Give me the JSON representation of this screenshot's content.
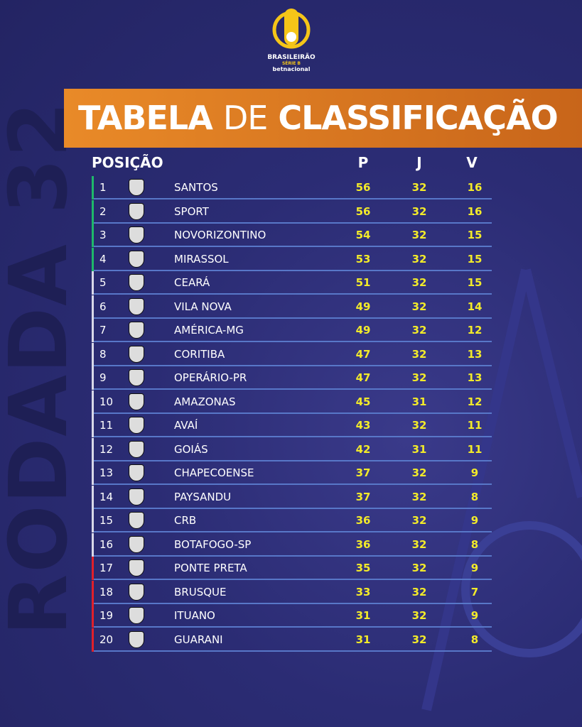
{
  "logo": {
    "name": "BRASILEIRÃO",
    "division": "SÉRIE B",
    "sponsor": "betnacional"
  },
  "title": {
    "part1": "TABELA",
    "part2": "DE",
    "part3": "CLASSIFICAÇÃO"
  },
  "round": "RODADA 32",
  "table": {
    "header": [
      "POSIÇÃO",
      "P",
      "J",
      "V"
    ],
    "rows": [
      {
        "pos": "1",
        "team": "SANTOS",
        "p": "56",
        "j": "32",
        "v": "16",
        "color": "#1fb86a"
      },
      {
        "pos": "2",
        "team": "SPORT",
        "p": "56",
        "j": "32",
        "v": "16",
        "color": "#1fb86a"
      },
      {
        "pos": "3",
        "team": "NOVORIZONTINO",
        "p": "54",
        "j": "32",
        "v": "15",
        "color": "#1fb86a"
      },
      {
        "pos": "4",
        "team": "MIRASSOL",
        "p": "53",
        "j": "32",
        "v": "15",
        "color": "#1fb86a"
      },
      {
        "pos": "5",
        "team": "CEARÁ",
        "p": "51",
        "j": "32",
        "v": "15",
        "color": "#d8d8e8"
      },
      {
        "pos": "6",
        "team": "VILA NOVA",
        "p": "49",
        "j": "32",
        "v": "14",
        "color": "#d8d8e8"
      },
      {
        "pos": "7",
        "team": "AMÉRICA-MG",
        "p": "49",
        "j": "32",
        "v": "12",
        "color": "#d8d8e8"
      },
      {
        "pos": "8",
        "team": "CORITIBA",
        "p": "47",
        "j": "32",
        "v": "13",
        "color": "#d8d8e8"
      },
      {
        "pos": "9",
        "team": "OPERÁRIO-PR",
        "p": "47",
        "j": "32",
        "v": "13",
        "color": "#d8d8e8"
      },
      {
        "pos": "10",
        "team": "AMAZONAS",
        "p": "45",
        "j": "31",
        "v": "12",
        "color": "#d8d8e8"
      },
      {
        "pos": "11",
        "team": "AVAÍ",
        "p": "43",
        "j": "32",
        "v": "11",
        "color": "#d8d8e8"
      },
      {
        "pos": "12",
        "team": "GOIÁS",
        "p": "42",
        "j": "31",
        "v": "11",
        "color": "#d8d8e8"
      },
      {
        "pos": "13",
        "team": "CHAPECOENSE",
        "p": "37",
        "j": "32",
        "v": "9",
        "color": "#d8d8e8"
      },
      {
        "pos": "14",
        "team": "PAYSANDU",
        "p": "37",
        "j": "32",
        "v": "8",
        "color": "#d8d8e8"
      },
      {
        "pos": "15",
        "team": "CRB",
        "p": "36",
        "j": "32",
        "v": "9",
        "color": "#d8d8e8"
      },
      {
        "pos": "16",
        "team": "BOTAFOGO-SP",
        "p": "36",
        "j": "32",
        "v": "8",
        "color": "#d8d8e8"
      },
      {
        "pos": "17",
        "team": "PONTE PRETA",
        "p": "35",
        "j": "32",
        "v": "9",
        "color": "#e0202a"
      },
      {
        "pos": "18",
        "team": "BRUSQUE",
        "p": "33",
        "j": "32",
        "v": "7",
        "color": "#e0202a"
      },
      {
        "pos": "19",
        "team": "ITUANO",
        "p": "31",
        "j": "32",
        "v": "9",
        "color": "#e0202a"
      },
      {
        "pos": "20",
        "team": "GUARANI",
        "p": "31",
        "j": "32",
        "v": "8",
        "color": "#e0202a"
      }
    ]
  }
}
